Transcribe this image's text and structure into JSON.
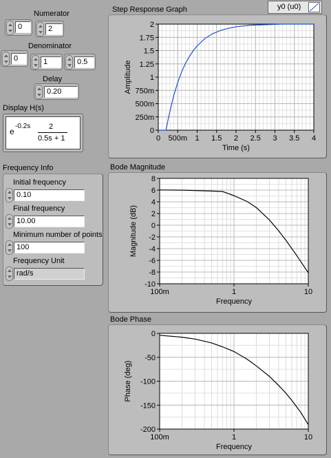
{
  "transfer_fn": {
    "numerator_label": "Numerator",
    "numerator_values": [
      "0",
      "2"
    ],
    "denominator_label": "Denominator",
    "denominator_values": [
      "0",
      "1",
      "0.5"
    ],
    "delay_label": "Delay",
    "delay_value": "0.20",
    "display_label": "Display H(s)",
    "display": {
      "base": "e",
      "exponent": "-0.2s",
      "num": "2",
      "den": "0.5s + 1"
    }
  },
  "freq_info": {
    "title": "Frequency Info",
    "initial_label": "Initial frequency",
    "initial_value": "0.10",
    "final_label": "Final frequency",
    "final_value": "10.00",
    "points_label": "Minimum number of points",
    "points_value": "100",
    "unit_label": "Frequency Unit",
    "unit_value": "rad/s"
  },
  "step_graph": {
    "title": "Step Response Graph",
    "legend": "y0 (u0)",
    "xlabel": "Time (s)",
    "ylabel": "Amplitude",
    "xticks": [
      "0",
      "500m",
      "1",
      "1.5",
      "2",
      "2.5",
      "3",
      "3.5",
      "4"
    ],
    "yticks": [
      "0",
      "250m",
      "500m",
      "750m",
      "1",
      "1.25",
      "1.5",
      "1.75",
      "2"
    ]
  },
  "mag_graph": {
    "title": "Bode Magnitude",
    "xlabel": "Frequency",
    "ylabel": "Magnitude (dB)",
    "xticks": [
      "100m",
      "1",
      "10"
    ],
    "yticks": [
      "-10",
      "-8",
      "-6",
      "-4",
      "-2",
      "0",
      "2",
      "4",
      "6",
      "8"
    ]
  },
  "phase_graph": {
    "title": "Bode Phase",
    "xlabel": "Frequency",
    "ylabel": "Phase (deg)",
    "xticks": [
      "100m",
      "1",
      "10"
    ],
    "yticks": [
      "-200",
      "-150",
      "-100",
      "-50",
      "0"
    ]
  },
  "colors": {
    "step_trace": "#1f4fd0",
    "bode_trace": "#000000",
    "panel_bg": "#a9a9a9"
  },
  "chart_data": [
    {
      "type": "line",
      "title": "Step Response Graph",
      "xlabel": "Time (s)",
      "ylabel": "Amplitude",
      "xlim": [
        0,
        4
      ],
      "ylim": [
        0,
        2
      ],
      "series": [
        {
          "name": "y0 (u0)",
          "x": [
            0,
            0.2,
            0.25,
            0.3,
            0.4,
            0.5,
            0.6,
            0.7,
            0.8,
            0.9,
            1.0,
            1.2,
            1.4,
            1.6,
            1.8,
            2.0,
            2.4,
            2.8,
            3.2,
            3.6,
            4.0
          ],
          "y": [
            0,
            0,
            0.19,
            0.36,
            0.66,
            0.9,
            1.1,
            1.26,
            1.39,
            1.5,
            1.59,
            1.73,
            1.82,
            1.88,
            1.92,
            1.95,
            1.98,
            1.99,
            2.0,
            2.0,
            2.0
          ]
        }
      ],
      "grid": true,
      "legend": "top-right"
    },
    {
      "type": "line",
      "title": "Bode Magnitude",
      "xlabel": "Frequency",
      "ylabel": "Magnitude (dB)",
      "xscale": "log",
      "xlim": [
        0.1,
        10
      ],
      "ylim": [
        -10,
        8
      ],
      "series": [
        {
          "x": [
            0.1,
            0.2,
            0.3,
            0.5,
            0.7,
            1,
            1.5,
            2,
            3,
            4,
            5,
            6,
            7,
            8,
            10
          ],
          "y": [
            6.02,
            5.99,
            5.93,
            5.84,
            5.76,
            5.05,
            4.06,
            3.01,
            0.91,
            -0.97,
            -2.58,
            -3.98,
            -5.19,
            -6.28,
            -8.13
          ]
        }
      ],
      "grid": true
    },
    {
      "type": "line",
      "title": "Bode Phase",
      "xlabel": "Frequency",
      "ylabel": "Phase (deg)",
      "xscale": "log",
      "xlim": [
        0.1,
        10
      ],
      "ylim": [
        -200,
        0
      ],
      "series": [
        {
          "x": [
            0.1,
            0.2,
            0.3,
            0.5,
            0.7,
            1,
            1.5,
            2,
            3,
            4,
            5,
            6,
            7,
            8,
            10
          ],
          "y": [
            -4,
            -8,
            -12,
            -20,
            -28,
            -38,
            -54,
            -68,
            -90,
            -109,
            -125,
            -140,
            -154,
            -166,
            -191
          ]
        }
      ],
      "grid": true
    }
  ]
}
